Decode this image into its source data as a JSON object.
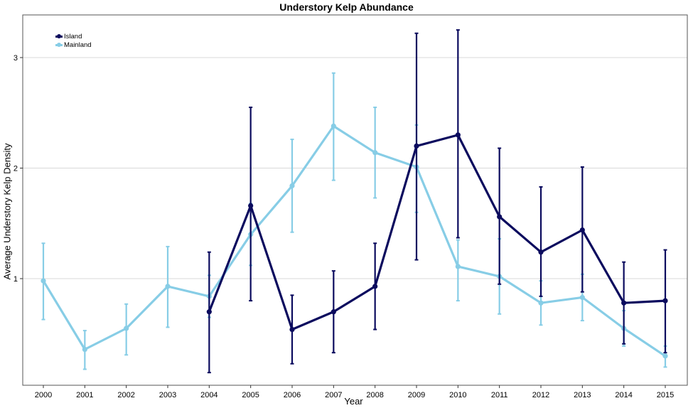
{
  "chart_data": {
    "type": "line",
    "title": "Understory Kelp Abundance",
    "xlabel": "Year",
    "ylabel": "Average Understory Kelp Density",
    "categories": [
      "2000",
      "2001",
      "2002",
      "2003",
      "2004",
      "2005",
      "2006",
      "2007",
      "2008",
      "2009",
      "2010",
      "2011",
      "2012",
      "2013",
      "2014",
      "2015"
    ],
    "yticks": [
      1,
      2,
      3
    ],
    "ylim": [
      -0.03,
      3.4
    ],
    "grid": true,
    "legend_position": "top-left",
    "series": [
      {
        "name": "Island",
        "color": "#0b0b5e",
        "values": [
          null,
          null,
          null,
          null,
          0.7,
          1.66,
          0.54,
          0.7,
          0.93,
          2.2,
          2.3,
          1.56,
          1.24,
          1.44,
          0.78,
          0.8
        ],
        "err_low": [
          null,
          null,
          null,
          null,
          0.15,
          0.8,
          0.23,
          0.33,
          0.54,
          1.17,
          1.37,
          0.95,
          0.84,
          0.88,
          0.41,
          0.33
        ],
        "err_high": [
          null,
          null,
          null,
          null,
          1.24,
          2.55,
          0.85,
          1.07,
          1.32,
          3.22,
          3.25,
          2.18,
          1.83,
          2.01,
          1.15,
          1.26
        ]
      },
      {
        "name": "Mainland",
        "color": "#87cde6",
        "values": [
          0.98,
          0.36,
          0.55,
          0.93,
          0.84,
          1.4,
          1.84,
          2.38,
          2.14,
          2.01,
          1.11,
          1.02,
          0.78,
          0.83,
          0.55,
          0.3
        ],
        "err_low": [
          0.63,
          0.18,
          0.31,
          0.56,
          0.65,
          1.12,
          1.42,
          1.89,
          1.73,
          1.6,
          0.8,
          0.68,
          0.58,
          0.62,
          0.39,
          0.2
        ],
        "err_high": [
          1.32,
          0.53,
          0.77,
          1.29,
          1.03,
          1.68,
          2.26,
          2.86,
          2.55,
          2.39,
          1.35,
          1.36,
          0.98,
          1.04,
          0.71,
          0.39
        ]
      }
    ]
  }
}
